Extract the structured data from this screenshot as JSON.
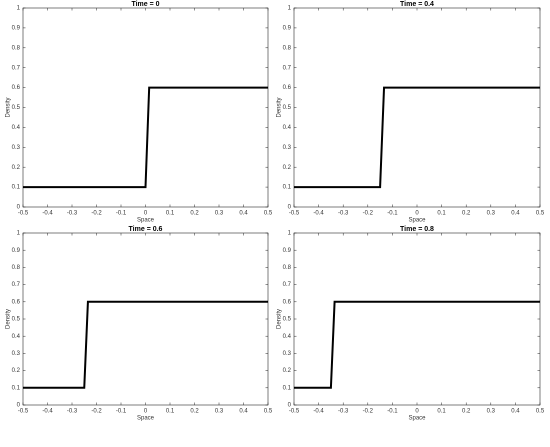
{
  "chart_data": [
    {
      "type": "line",
      "title": "Time = 0",
      "xlabel": "Space",
      "ylabel": "Density",
      "color": "#000000",
      "x": [
        -0.5,
        0,
        0.015,
        0.5
      ],
      "values": [
        0.1,
        0.1,
        0.6,
        0.6
      ],
      "xlim": [
        -0.5,
        0.5
      ],
      "xticks": [
        -0.5,
        -0.4,
        -0.3,
        -0.2,
        -0.1,
        0,
        0.1,
        0.2,
        0.3,
        0.4,
        0.5
      ],
      "ylim": [
        0,
        1
      ],
      "yticks": [
        0,
        0.1,
        0.2,
        0.3,
        0.4,
        0.5,
        0.6,
        0.7,
        0.8,
        0.9,
        1
      ]
    },
    {
      "type": "line",
      "title": "Time = 0.4",
      "xlabel": "Space",
      "ylabel": "Density",
      "color": "#000000",
      "x": [
        -0.5,
        -0.15,
        -0.134,
        0.5
      ],
      "values": [
        0.1,
        0.1,
        0.6,
        0.6
      ],
      "xlim": [
        -0.5,
        0.5
      ],
      "xticks": [
        -0.5,
        -0.4,
        -0.3,
        -0.2,
        -0.1,
        0,
        0.1,
        0.2,
        0.3,
        0.4,
        0.5
      ],
      "ylim": [
        0,
        1
      ],
      "yticks": [
        0,
        0.1,
        0.2,
        0.3,
        0.4,
        0.5,
        0.6,
        0.7,
        0.8,
        0.9,
        1
      ]
    },
    {
      "type": "line",
      "title": "Time = 0.6",
      "xlabel": "Space",
      "ylabel": "Density",
      "color": "#000000",
      "x": [
        -0.5,
        -0.25,
        -0.235,
        0.5
      ],
      "values": [
        0.1,
        0.1,
        0.6,
        0.6
      ],
      "xlim": [
        -0.5,
        0.5
      ],
      "xticks": [
        -0.5,
        -0.4,
        -0.3,
        -0.2,
        -0.1,
        0,
        0.1,
        0.2,
        0.3,
        0.4,
        0.5
      ],
      "ylim": [
        0,
        1
      ],
      "yticks": [
        0,
        0.1,
        0.2,
        0.3,
        0.4,
        0.5,
        0.6,
        0.7,
        0.8,
        0.9,
        1
      ]
    },
    {
      "type": "line",
      "title": "Time = 0.8",
      "xlabel": "Space",
      "ylabel": "Density",
      "color": "#000000",
      "x": [
        -0.5,
        -0.35,
        -0.335,
        0.5
      ],
      "values": [
        0.1,
        0.1,
        0.6,
        0.6
      ],
      "xlim": [
        -0.5,
        0.5
      ],
      "xticks": [
        -0.5,
        -0.4,
        -0.3,
        -0.2,
        -0.1,
        0,
        0.1,
        0.2,
        0.3,
        0.4,
        0.5
      ],
      "ylim": [
        0,
        1
      ],
      "yticks": [
        0,
        0.1,
        0.2,
        0.3,
        0.4,
        0.5,
        0.6,
        0.7,
        0.8,
        0.9,
        1
      ]
    }
  ]
}
